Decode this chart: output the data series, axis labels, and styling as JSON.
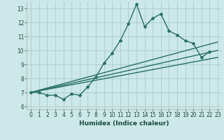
{
  "xlabel": "Humidex (Indice chaleur)",
  "ylabel": "",
  "xlim": [
    -0.5,
    23.5
  ],
  "ylim": [
    5.8,
    13.5
  ],
  "yticks": [
    6,
    7,
    8,
    9,
    10,
    11,
    12,
    13
  ],
  "xticks": [
    0,
    1,
    2,
    3,
    4,
    5,
    6,
    7,
    8,
    9,
    10,
    11,
    12,
    13,
    14,
    15,
    16,
    17,
    18,
    19,
    20,
    21,
    22,
    23
  ],
  "bg_color": "#cce8e8",
  "grid_color": "#aacccc",
  "line_color": "#267060",
  "line1_x": [
    0,
    1,
    2,
    3,
    4,
    5,
    6,
    7,
    8,
    9,
    10,
    11,
    12,
    13,
    14,
    15,
    16,
    17,
    18,
    19,
    20,
    21,
    22
  ],
  "line1_y": [
    7.0,
    7.0,
    6.8,
    6.8,
    6.5,
    6.9,
    6.8,
    7.4,
    8.1,
    9.1,
    9.8,
    10.7,
    11.9,
    13.3,
    11.7,
    12.3,
    12.6,
    11.4,
    11.1,
    10.7,
    10.5,
    9.5,
    9.9
  ],
  "line2_x": [
    0,
    23
  ],
  "line2_y": [
    7.0,
    10.6
  ],
  "line3_x": [
    0,
    23
  ],
  "line3_y": [
    7.0,
    9.5
  ],
  "line4_x": [
    0,
    23
  ],
  "line4_y": [
    7.0,
    10.0
  ],
  "marker": "*",
  "markersize": 3,
  "linewidth": 1.0,
  "tick_fontsize": 5.5,
  "xlabel_fontsize": 6.5
}
